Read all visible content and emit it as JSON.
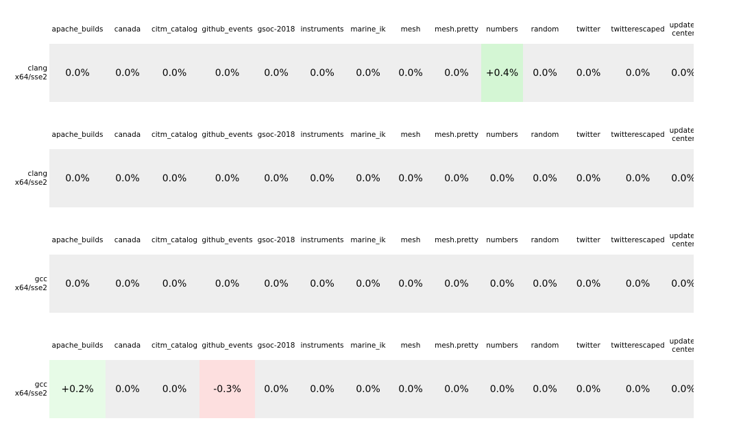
{
  "chart_data": {
    "type": "heatmap",
    "title": "",
    "legend": "none",
    "grid": false,
    "background": "#ffffff",
    "text_color": "#000000",
    "categories": [
      "apache_builds",
      "canada",
      "citm_catalog",
      "github_events",
      "gsoc-2018",
      "instruments",
      "marine_ik",
      "mesh",
      "mesh.pretty",
      "numbers",
      "random",
      "twitter",
      "twitterescaped",
      "update-center"
    ],
    "cell_colors": {
      "zero": "#eeeeee",
      "positive_strong": "#d4f6d4",
      "positive_light": "#e7fbe7",
      "negative_light": "#fddfdf"
    },
    "rows": [
      {
        "label": "clang x64/sse2",
        "label_lines": [
          "clang",
          "x64/sse2"
        ],
        "display": [
          "0.0%",
          "0.0%",
          "0.0%",
          "0.0%",
          "0.0%",
          "0.0%",
          "0.0%",
          "0.0%",
          "0.0%",
          "+0.4%",
          "0.0%",
          "0.0%",
          "0.0%",
          "0.0%"
        ],
        "values_pct": [
          0.0,
          0.0,
          0.0,
          0.0,
          0.0,
          0.0,
          0.0,
          0.0,
          0.0,
          0.4,
          0.0,
          0.0,
          0.0,
          0.0
        ],
        "highlights": {
          "9": "positive_strong"
        }
      },
      {
        "label": "clang x64/sse2",
        "label_lines": [
          "clang",
          "x64/sse2"
        ],
        "display": [
          "0.0%",
          "0.0%",
          "0.0%",
          "0.0%",
          "0.0%",
          "0.0%",
          "0.0%",
          "0.0%",
          "0.0%",
          "0.0%",
          "0.0%",
          "0.0%",
          "0.0%",
          "0.0%"
        ],
        "values_pct": [
          0.0,
          0.0,
          0.0,
          0.0,
          0.0,
          0.0,
          0.0,
          0.0,
          0.0,
          0.0,
          0.0,
          0.0,
          0.0,
          0.0
        ],
        "highlights": {}
      },
      {
        "label": "gcc x64/sse2",
        "label_lines": [
          "gcc",
          "x64/sse2"
        ],
        "display": [
          "0.0%",
          "0.0%",
          "0.0%",
          "0.0%",
          "0.0%",
          "0.0%",
          "0.0%",
          "0.0%",
          "0.0%",
          "0.0%",
          "0.0%",
          "0.0%",
          "0.0%",
          "0.0%"
        ],
        "values_pct": [
          0.0,
          0.0,
          0.0,
          0.0,
          0.0,
          0.0,
          0.0,
          0.0,
          0.0,
          0.0,
          0.0,
          0.0,
          0.0,
          0.0
        ],
        "highlights": {}
      },
      {
        "label": "gcc x64/sse2",
        "label_lines": [
          "gcc",
          "x64/sse2"
        ],
        "display": [
          "+0.2%",
          "0.0%",
          "0.0%",
          "-0.3%",
          "0.0%",
          "0.0%",
          "0.0%",
          "0.0%",
          "0.0%",
          "0.0%",
          "0.0%",
          "0.0%",
          "0.0%",
          "0.0%"
        ],
        "values_pct": [
          0.2,
          0.0,
          0.0,
          -0.3,
          0.0,
          0.0,
          0.0,
          0.0,
          0.0,
          0.0,
          0.0,
          0.0,
          0.0,
          0.0
        ],
        "highlights": {
          "0": "positive_light",
          "3": "negative_light"
        }
      }
    ]
  }
}
